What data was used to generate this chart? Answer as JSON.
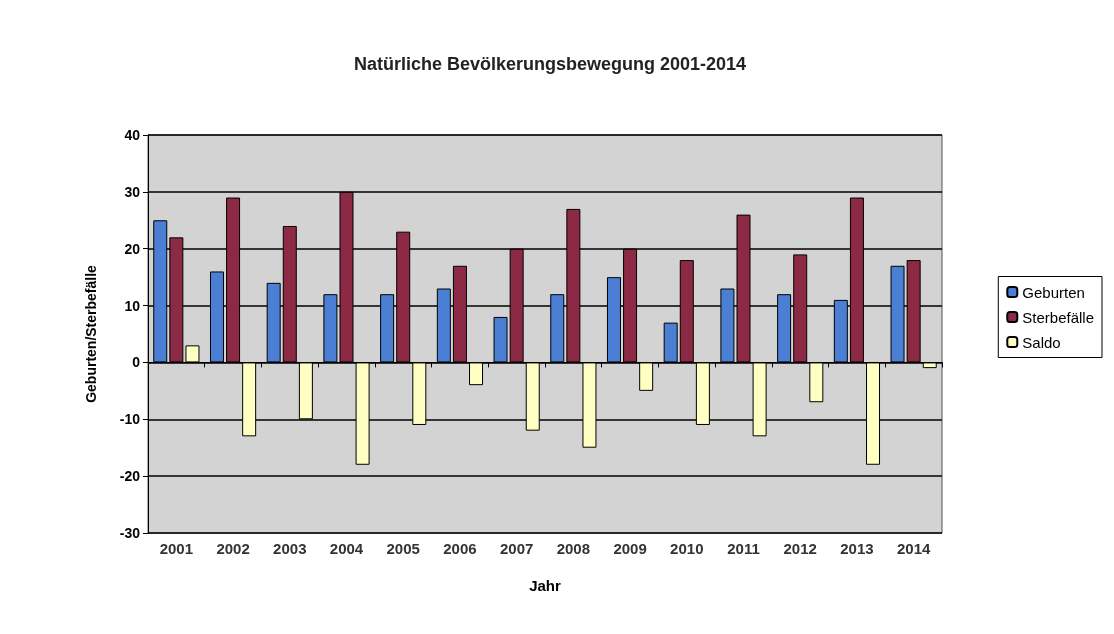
{
  "chart_data": {
    "type": "bar",
    "title": "Natürliche Bevölkerungsbewegung 2001-2014",
    "xlabel": "Jahr",
    "ylabel": "Geburten/Sterbefälle",
    "categories": [
      "2001",
      "2002",
      "2003",
      "2004",
      "2005",
      "2006",
      "2007",
      "2008",
      "2009",
      "2010",
      "2011",
      "2012",
      "2013",
      "2014"
    ],
    "series": [
      {
        "name": "Geburten",
        "color": "#4a7fd4",
        "values": [
          25,
          16,
          14,
          12,
          12,
          13,
          8,
          12,
          15,
          7,
          13,
          12,
          11,
          17
        ]
      },
      {
        "name": "Sterbefälle",
        "color": "#8c2a45",
        "values": [
          22,
          29,
          24,
          30,
          23,
          17,
          20,
          27,
          20,
          18,
          26,
          19,
          29,
          18
        ]
      },
      {
        "name": "Saldo",
        "color": "#ffffc4",
        "values": [
          3,
          -13,
          -10,
          -18,
          -11,
          -4,
          -12,
          -15,
          -5,
          -11,
          -13,
          -7,
          -18,
          -1
        ]
      }
    ],
    "ylim": [
      -30,
      40
    ],
    "yticks": [
      -30,
      -20,
      -10,
      0,
      10,
      20,
      30,
      40
    ],
    "grid": "y",
    "legend": "right"
  }
}
